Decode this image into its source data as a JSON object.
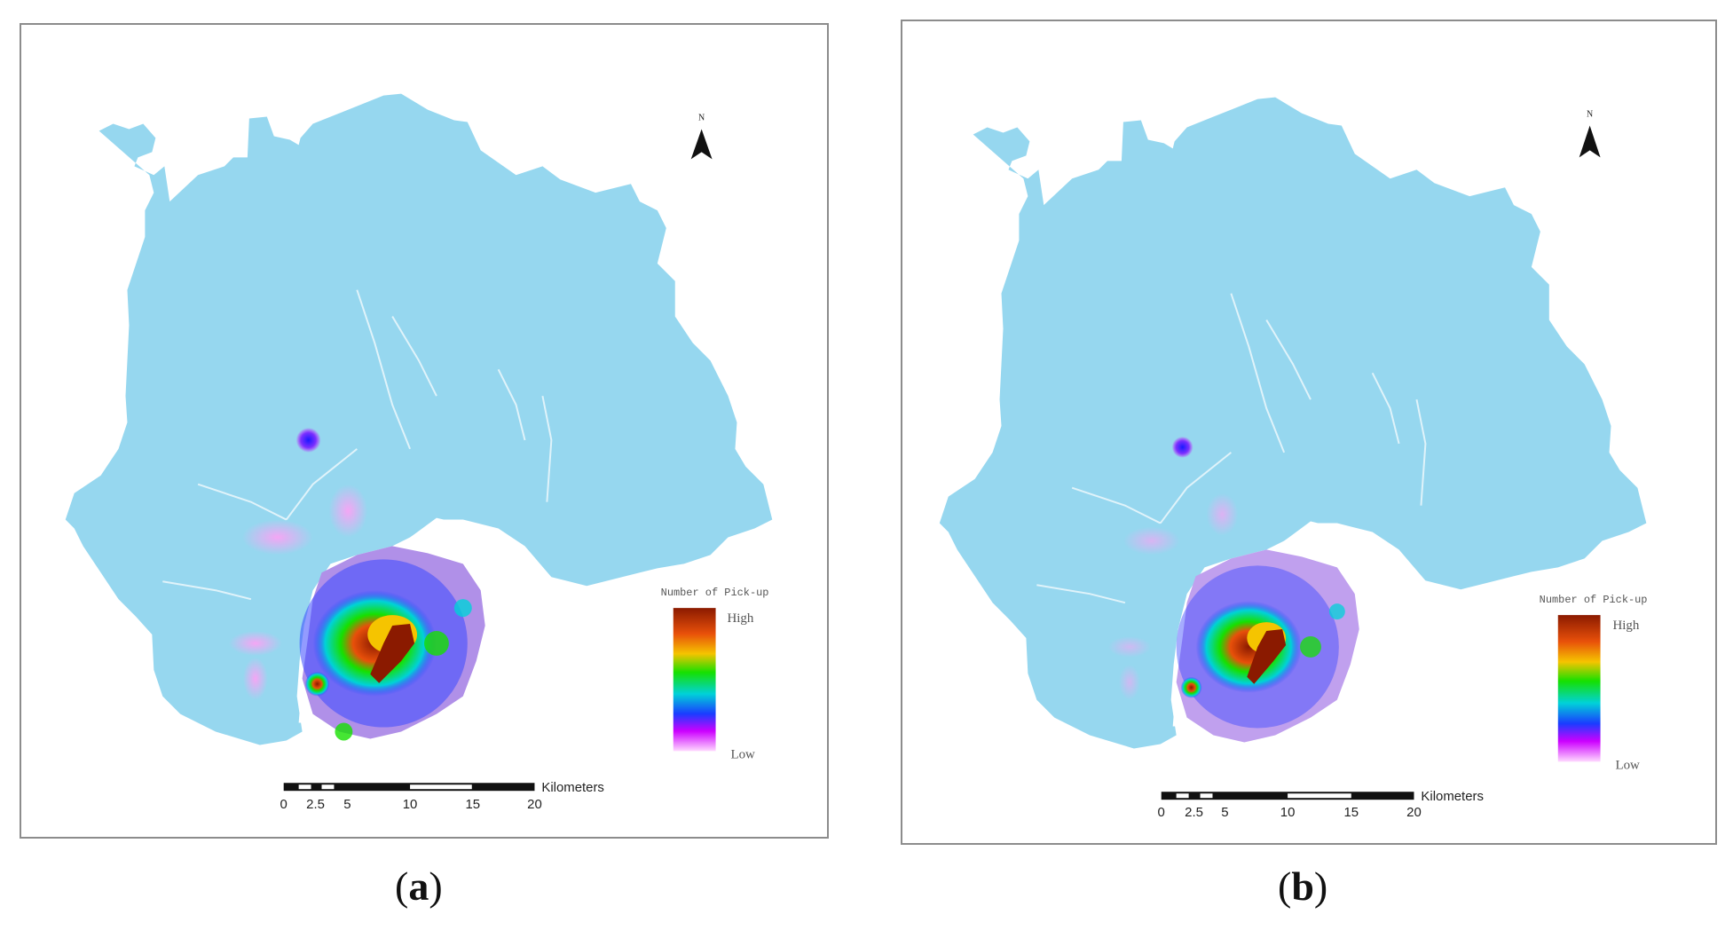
{
  "panels": [
    {
      "id": "a",
      "caption_letter": "a",
      "legend": {
        "title": "Number of Pick-up",
        "high_label": "High",
        "low_label": "Low"
      },
      "scale_bar": {
        "ticks": [
          "0",
          "2.5",
          "5",
          "10",
          "15",
          "20"
        ],
        "unit": "Kilometers"
      },
      "north_label": "N"
    },
    {
      "id": "b",
      "caption_letter": "b",
      "legend": {
        "title": "Number of Pick-up",
        "high_label": "High",
        "low_label": "Low"
      },
      "scale_bar": {
        "ticks": [
          "0",
          "2.5",
          "5",
          "10",
          "15",
          "20"
        ],
        "unit": "Kilometers"
      },
      "north_label": "N"
    }
  ],
  "colors": {
    "land": "#96d7ef",
    "density_ramp": [
      "#8b1a00",
      "#e8500a",
      "#f5c400",
      "#16e000",
      "#00d2d8",
      "#1a3cff",
      "#cc00ff",
      "#ffd9ff"
    ]
  }
}
